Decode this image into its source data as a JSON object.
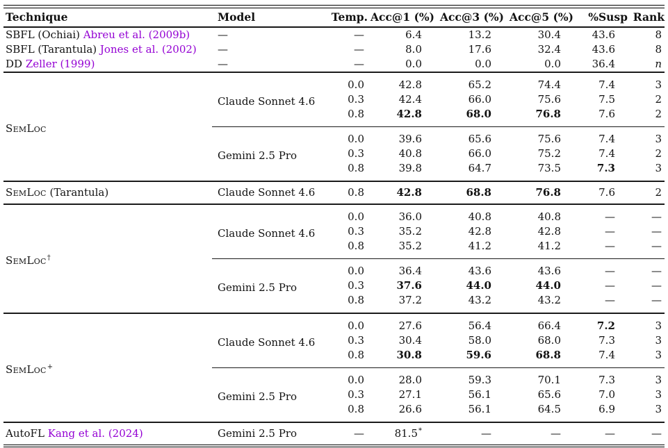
{
  "table": {
    "accent_link_color": "#9400D3",
    "columns": [
      "Technique",
      "Model",
      "Temp.",
      "Acc@1 (%)",
      "Acc@3 (%)",
      "Acc@5 (%)",
      "%Susp",
      "Rank"
    ],
    "blocks": [
      {
        "kind": "rows",
        "rows": [
          {
            "technique": {
              "prefix": "SBFL (Ochiai) ",
              "cite": "Abreu et al. (2009b)"
            },
            "model": "—",
            "cells": {
              "temp": "—",
              "acc1": "6.4",
              "acc3": "13.2",
              "acc5": "30.4",
              "susp": "43.6",
              "rank": "8"
            }
          },
          {
            "technique": {
              "prefix": "SBFL (Tarantula) ",
              "cite": "Jones et al. (2002)"
            },
            "model": "—",
            "cells": {
              "temp": "—",
              "acc1": "8.0",
              "acc3": "17.6",
              "acc5": "32.4",
              "susp": "43.6",
              "rank": "8"
            }
          },
          {
            "technique": {
              "prefix": "DD ",
              "cite": "Zeller (1999)"
            },
            "model": "—",
            "cells": {
              "temp": "—",
              "acc1": "0.0",
              "acc3": "0.0",
              "acc5": "0.0",
              "susp": "36.4",
              "rank": "n"
            },
            "italic": [
              "rank"
            ]
          }
        ]
      },
      {
        "kind": "group",
        "technique": {
          "smallcaps": "SemLoc"
        },
        "models": [
          {
            "name": "Claude Sonnet 4.6",
            "rows": [
              {
                "cells": {
                  "temp": "0.0",
                  "acc1": "42.8",
                  "acc3": "65.2",
                  "acc5": "74.4",
                  "susp": "7.4",
                  "rank": "3"
                }
              },
              {
                "cells": {
                  "temp": "0.3",
                  "acc1": "42.4",
                  "acc3": "66.0",
                  "acc5": "75.6",
                  "susp": "7.5",
                  "rank": "2"
                }
              },
              {
                "cells": {
                  "temp": "0.8",
                  "acc1": "42.8",
                  "acc3": "68.0",
                  "acc5": "76.8",
                  "susp": "7.6",
                  "rank": "2"
                },
                "bold": [
                  "acc1",
                  "acc3",
                  "acc5"
                ]
              }
            ]
          },
          {
            "name": "Gemini 2.5 Pro",
            "rows": [
              {
                "cells": {
                  "temp": "0.0",
                  "acc1": "39.6",
                  "acc3": "65.6",
                  "acc5": "75.6",
                  "susp": "7.4",
                  "rank": "3"
                }
              },
              {
                "cells": {
                  "temp": "0.3",
                  "acc1": "40.8",
                  "acc3": "66.0",
                  "acc5": "75.2",
                  "susp": "7.4",
                  "rank": "2"
                }
              },
              {
                "cells": {
                  "temp": "0.8",
                  "acc1": "39.8",
                  "acc3": "64.7",
                  "acc5": "73.5",
                  "susp": "7.3",
                  "rank": "3"
                },
                "bold": [
                  "susp"
                ]
              }
            ]
          }
        ]
      },
      {
        "kind": "rows",
        "pad": true,
        "rows": [
          {
            "technique": {
              "smallcaps": "SemLoc",
              "rest": " (Tarantula)"
            },
            "model": "Claude Sonnet 4.6",
            "cells": {
              "temp": "0.8",
              "acc1": "42.8",
              "acc3": "68.8",
              "acc5": "76.8",
              "susp": "7.6",
              "rank": "2"
            },
            "bold": [
              "acc1",
              "acc3",
              "acc5"
            ]
          }
        ]
      },
      {
        "kind": "group",
        "technique": {
          "smallcaps": "SemLoc",
          "sup": "†"
        },
        "models": [
          {
            "name": "Claude Sonnet 4.6",
            "rows": [
              {
                "cells": {
                  "temp": "0.0",
                  "acc1": "36.0",
                  "acc3": "40.8",
                  "acc5": "40.8",
                  "susp": "—",
                  "rank": "—"
                }
              },
              {
                "cells": {
                  "temp": "0.3",
                  "acc1": "35.2",
                  "acc3": "42.8",
                  "acc5": "42.8",
                  "susp": "—",
                  "rank": "—"
                }
              },
              {
                "cells": {
                  "temp": "0.8",
                  "acc1": "35.2",
                  "acc3": "41.2",
                  "acc5": "41.2",
                  "susp": "—",
                  "rank": "—"
                }
              }
            ]
          },
          {
            "name": "Gemini 2.5 Pro",
            "rows": [
              {
                "cells": {
                  "temp": "0.0",
                  "acc1": "36.4",
                  "acc3": "43.6",
                  "acc5": "43.6",
                  "susp": "—",
                  "rank": "—"
                }
              },
              {
                "cells": {
                  "temp": "0.3",
                  "acc1": "37.6",
                  "acc3": "44.0",
                  "acc5": "44.0",
                  "susp": "—",
                  "rank": "—"
                },
                "bold": [
                  "acc1",
                  "acc3",
                  "acc5"
                ]
              },
              {
                "cells": {
                  "temp": "0.8",
                  "acc1": "37.2",
                  "acc3": "43.2",
                  "acc5": "43.2",
                  "susp": "—",
                  "rank": "—"
                }
              }
            ]
          }
        ]
      },
      {
        "kind": "group",
        "technique": {
          "smallcaps": "SemLoc",
          "sup": "+"
        },
        "models": [
          {
            "name": "Claude Sonnet 4.6",
            "rows": [
              {
                "cells": {
                  "temp": "0.0",
                  "acc1": "27.6",
                  "acc3": "56.4",
                  "acc5": "66.4",
                  "susp": "7.2",
                  "rank": "3"
                },
                "bold": [
                  "susp"
                ]
              },
              {
                "cells": {
                  "temp": "0.3",
                  "acc1": "30.4",
                  "acc3": "58.0",
                  "acc5": "68.0",
                  "susp": "7.3",
                  "rank": "3"
                }
              },
              {
                "cells": {
                  "temp": "0.8",
                  "acc1": "30.8",
                  "acc3": "59.6",
                  "acc5": "68.8",
                  "susp": "7.4",
                  "rank": "3"
                },
                "bold": [
                  "acc1",
                  "acc3",
                  "acc5"
                ]
              }
            ]
          },
          {
            "name": "Gemini 2.5 Pro",
            "rows": [
              {
                "cells": {
                  "temp": "0.0",
                  "acc1": "28.0",
                  "acc3": "59.3",
                  "acc5": "70.1",
                  "susp": "7.3",
                  "rank": "3"
                }
              },
              {
                "cells": {
                  "temp": "0.3",
                  "acc1": "27.1",
                  "acc3": "56.1",
                  "acc5": "65.6",
                  "susp": "7.0",
                  "rank": "3"
                }
              },
              {
                "cells": {
                  "temp": "0.8",
                  "acc1": "26.6",
                  "acc3": "56.1",
                  "acc5": "64.5",
                  "susp": "6.9",
                  "rank": "3"
                }
              }
            ]
          }
        ]
      },
      {
        "kind": "rows",
        "pad": true,
        "rows": [
          {
            "technique": {
              "prefix": "AutoFL ",
              "cite": "Kang et al. (2024)"
            },
            "model": "Gemini 2.5 Pro",
            "cells": {
              "temp": "—",
              "acc1": "81.5",
              "acc3": "—",
              "acc5": "—",
              "susp": "—",
              "rank": "—"
            },
            "sup": {
              "acc1": "*"
            }
          }
        ]
      }
    ]
  }
}
